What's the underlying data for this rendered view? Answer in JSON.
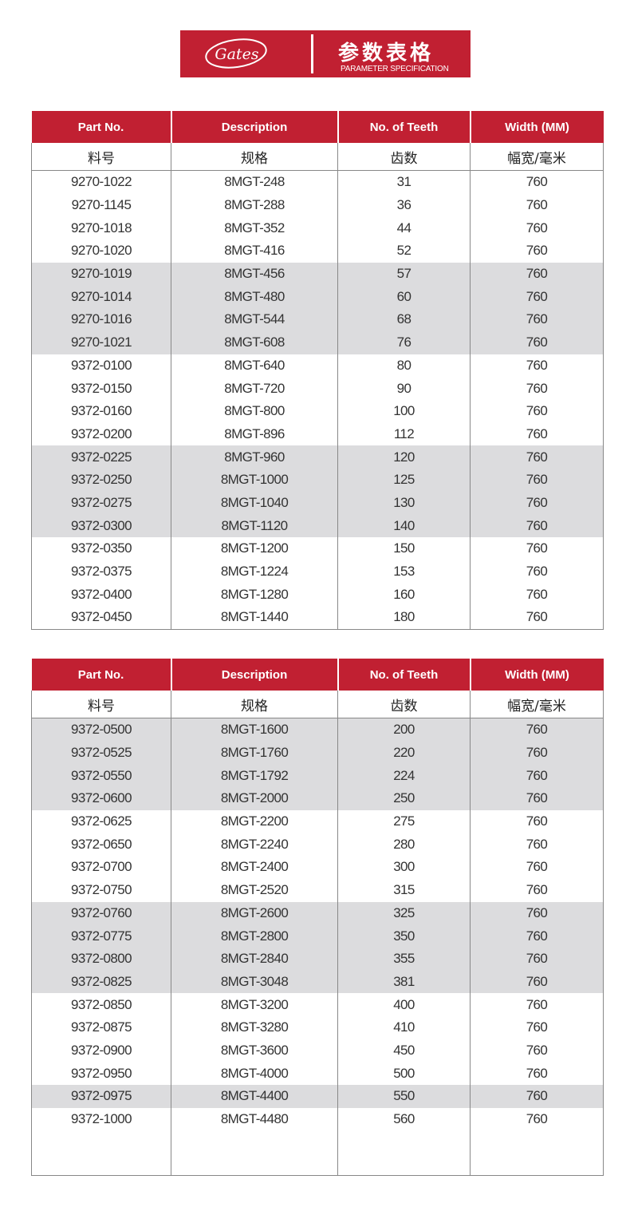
{
  "banner": {
    "logo_text": "Gates",
    "title_cn": "参数表格",
    "title_en": "PARAMETER SPECIFICATION",
    "color": "#c12032"
  },
  "headers": [
    "Part No.",
    "Description",
    "No. of Teeth",
    "Width  (MM)"
  ],
  "subheaders": [
    "料号",
    "规格",
    "齿数",
    "幅宽/毫米"
  ],
  "tables": [
    {
      "rows": [
        {
          "part": "9270-1022",
          "desc": "8MGT-248",
          "teeth": "31",
          "width": "760",
          "shaded": false
        },
        {
          "part": "9270-1145",
          "desc": "8MGT-288",
          "teeth": "36",
          "width": "760",
          "shaded": false
        },
        {
          "part": "9270-1018",
          "desc": "8MGT-352",
          "teeth": "44",
          "width": "760",
          "shaded": false
        },
        {
          "part": "9270-1020",
          "desc": "8MGT-416",
          "teeth": "52",
          "width": "760",
          "shaded": false
        },
        {
          "part": "9270-1019",
          "desc": "8MGT-456",
          "teeth": "57",
          "width": "760",
          "shaded": true
        },
        {
          "part": "9270-1014",
          "desc": "8MGT-480",
          "teeth": "60",
          "width": "760",
          "shaded": true
        },
        {
          "part": "9270-1016",
          "desc": "8MGT-544",
          "teeth": "68",
          "width": "760",
          "shaded": true
        },
        {
          "part": "9270-1021",
          "desc": "8MGT-608",
          "teeth": "76",
          "width": "760",
          "shaded": true
        },
        {
          "part": "9372-0100",
          "desc": "8MGT-640",
          "teeth": "80",
          "width": "760",
          "shaded": false
        },
        {
          "part": "9372-0150",
          "desc": "8MGT-720",
          "teeth": "90",
          "width": "760",
          "shaded": false
        },
        {
          "part": "9372-0160",
          "desc": "8MGT-800",
          "teeth": "100",
          "width": "760",
          "shaded": false
        },
        {
          "part": "9372-0200",
          "desc": "8MGT-896",
          "teeth": "112",
          "width": "760",
          "shaded": false
        },
        {
          "part": "9372-0225",
          "desc": "8MGT-960",
          "teeth": "120",
          "width": "760",
          "shaded": true
        },
        {
          "part": "9372-0250",
          "desc": "8MGT-1000",
          "teeth": "125",
          "width": "760",
          "shaded": true
        },
        {
          "part": "9372-0275",
          "desc": "8MGT-1040",
          "teeth": "130",
          "width": "760",
          "shaded": true
        },
        {
          "part": "9372-0300",
          "desc": "8MGT-1120",
          "teeth": "140",
          "width": "760",
          "shaded": true
        },
        {
          "part": "9372-0350",
          "desc": "8MGT-1200",
          "teeth": "150",
          "width": "760",
          "shaded": false
        },
        {
          "part": "9372-0375",
          "desc": "8MGT-1224",
          "teeth": "153",
          "width": "760",
          "shaded": false
        },
        {
          "part": "9372-0400",
          "desc": "8MGT-1280",
          "teeth": "160",
          "width": "760",
          "shaded": false
        },
        {
          "part": "9372-0450",
          "desc": "8MGT-1440",
          "teeth": "180",
          "width": "760",
          "shaded": false
        }
      ]
    },
    {
      "rows": [
        {
          "part": "9372-0500",
          "desc": "8MGT-1600",
          "teeth": "200",
          "width": "760",
          "shaded": true
        },
        {
          "part": "9372-0525",
          "desc": "8MGT-1760",
          "teeth": "220",
          "width": "760",
          "shaded": true
        },
        {
          "part": "9372-0550",
          "desc": "8MGT-1792",
          "teeth": "224",
          "width": "760",
          "shaded": true
        },
        {
          "part": "9372-0600",
          "desc": "8MGT-2000",
          "teeth": "250",
          "width": "760",
          "shaded": true
        },
        {
          "part": "9372-0625",
          "desc": "8MGT-2200",
          "teeth": "275",
          "width": "760",
          "shaded": false
        },
        {
          "part": "9372-0650",
          "desc": "8MGT-2240",
          "teeth": "280",
          "width": "760",
          "shaded": false
        },
        {
          "part": "9372-0700",
          "desc": "8MGT-2400",
          "teeth": "300",
          "width": "760",
          "shaded": false
        },
        {
          "part": "9372-0750",
          "desc": "8MGT-2520",
          "teeth": "315",
          "width": "760",
          "shaded": false
        },
        {
          "part": "9372-0760",
          "desc": "8MGT-2600",
          "teeth": "325",
          "width": "760",
          "shaded": true
        },
        {
          "part": "9372-0775",
          "desc": "8MGT-2800",
          "teeth": "350",
          "width": "760",
          "shaded": true
        },
        {
          "part": "9372-0800",
          "desc": "8MGT-2840",
          "teeth": "355",
          "width": "760",
          "shaded": true
        },
        {
          "part": "9372-0825",
          "desc": "8MGT-3048",
          "teeth": "381",
          "width": "760",
          "shaded": true
        },
        {
          "part": "9372-0850",
          "desc": "8MGT-3200",
          "teeth": "400",
          "width": "760",
          "shaded": false
        },
        {
          "part": "9372-0875",
          "desc": "8MGT-3280",
          "teeth": "410",
          "width": "760",
          "shaded": false
        },
        {
          "part": "9372-0900",
          "desc": "8MGT-3600",
          "teeth": "450",
          "width": "760",
          "shaded": false
        },
        {
          "part": "9372-0950",
          "desc": "8MGT-4000",
          "teeth": "500",
          "width": "760",
          "shaded": false
        },
        {
          "part": "9372-0975",
          "desc": "8MGT-4400",
          "teeth": "550",
          "width": "760",
          "shaded": true
        },
        {
          "part": "9372-1000",
          "desc": "8MGT-4480",
          "teeth": "560",
          "width": "760",
          "shaded": false
        }
      ]
    }
  ]
}
